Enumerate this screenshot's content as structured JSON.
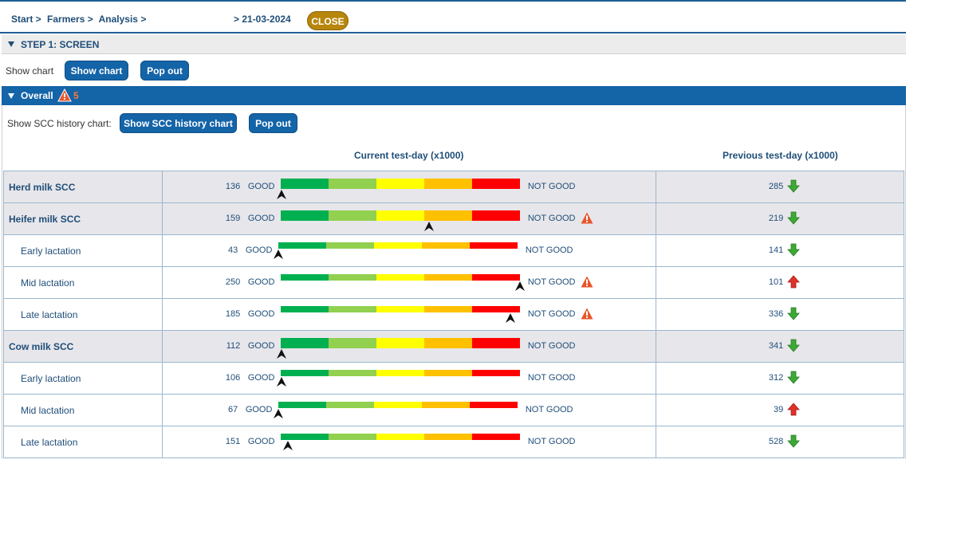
{
  "breadcrumb": {
    "start": "Start >",
    "farmers": "Farmers >",
    "analysis": "Analysis >"
  },
  "date": "> 21-03-2024",
  "close_label": "CLOSE",
  "step": {
    "title": "STEP 1: SCREEN"
  },
  "chart_controls": {
    "label": "Show chart",
    "show_label": "Show chart",
    "popout_label": "Pop out"
  },
  "overall": {
    "title": "Overall",
    "warning_count": "5"
  },
  "scc_controls": {
    "label": "Show SCC history chart:",
    "show_label": "Show SCC history chart",
    "popout_label": "Pop out"
  },
  "headers": {
    "current": "Current test-day (x1000)",
    "previous": "Previous test-day (x1000)"
  },
  "scale": {
    "good": "GOOD",
    "not_good": "NOT GOOD"
  },
  "colors": {
    "seg1": "#00b050",
    "seg2": "#92d050",
    "seg3": "#ffff00",
    "seg4": "#ffc000",
    "seg5": "#ff0000",
    "arrow_down": "#3aaa35",
    "arrow_up": "#e0302a",
    "warning": "#e8552a"
  },
  "rows": [
    {
      "label": "Herd milk SCC",
      "type": "main",
      "current": "136",
      "level": 0.005,
      "warning": false,
      "previous": "285",
      "trend": "down"
    },
    {
      "label": "Heifer milk SCC",
      "type": "main",
      "current": "159",
      "level": 0.62,
      "warning": true,
      "previous": "219",
      "trend": "down"
    },
    {
      "label": "Early lactation",
      "type": "sub",
      "current": "43",
      "level": 0.0,
      "warning": false,
      "previous": "141",
      "trend": "down"
    },
    {
      "label": "Mid lactation",
      "type": "sub",
      "current": "250",
      "level": 1.0,
      "warning": true,
      "previous": "101",
      "trend": "up"
    },
    {
      "label": "Late lactation",
      "type": "sub",
      "current": "185",
      "level": 0.96,
      "warning": true,
      "previous": "336",
      "trend": "down"
    },
    {
      "label": "Cow milk SCC",
      "type": "main",
      "current": "112",
      "level": 0.005,
      "warning": false,
      "previous": "341",
      "trend": "down"
    },
    {
      "label": "Early lactation",
      "type": "sub",
      "current": "106",
      "level": 0.005,
      "warning": false,
      "previous": "312",
      "trend": "down"
    },
    {
      "label": "Mid lactation",
      "type": "sub",
      "current": "67",
      "level": 0.0,
      "warning": false,
      "previous": "39",
      "trend": "up"
    },
    {
      "label": "Late lactation",
      "type": "sub",
      "current": "151",
      "level": 0.03,
      "warning": false,
      "previous": "528",
      "trend": "down"
    }
  ]
}
